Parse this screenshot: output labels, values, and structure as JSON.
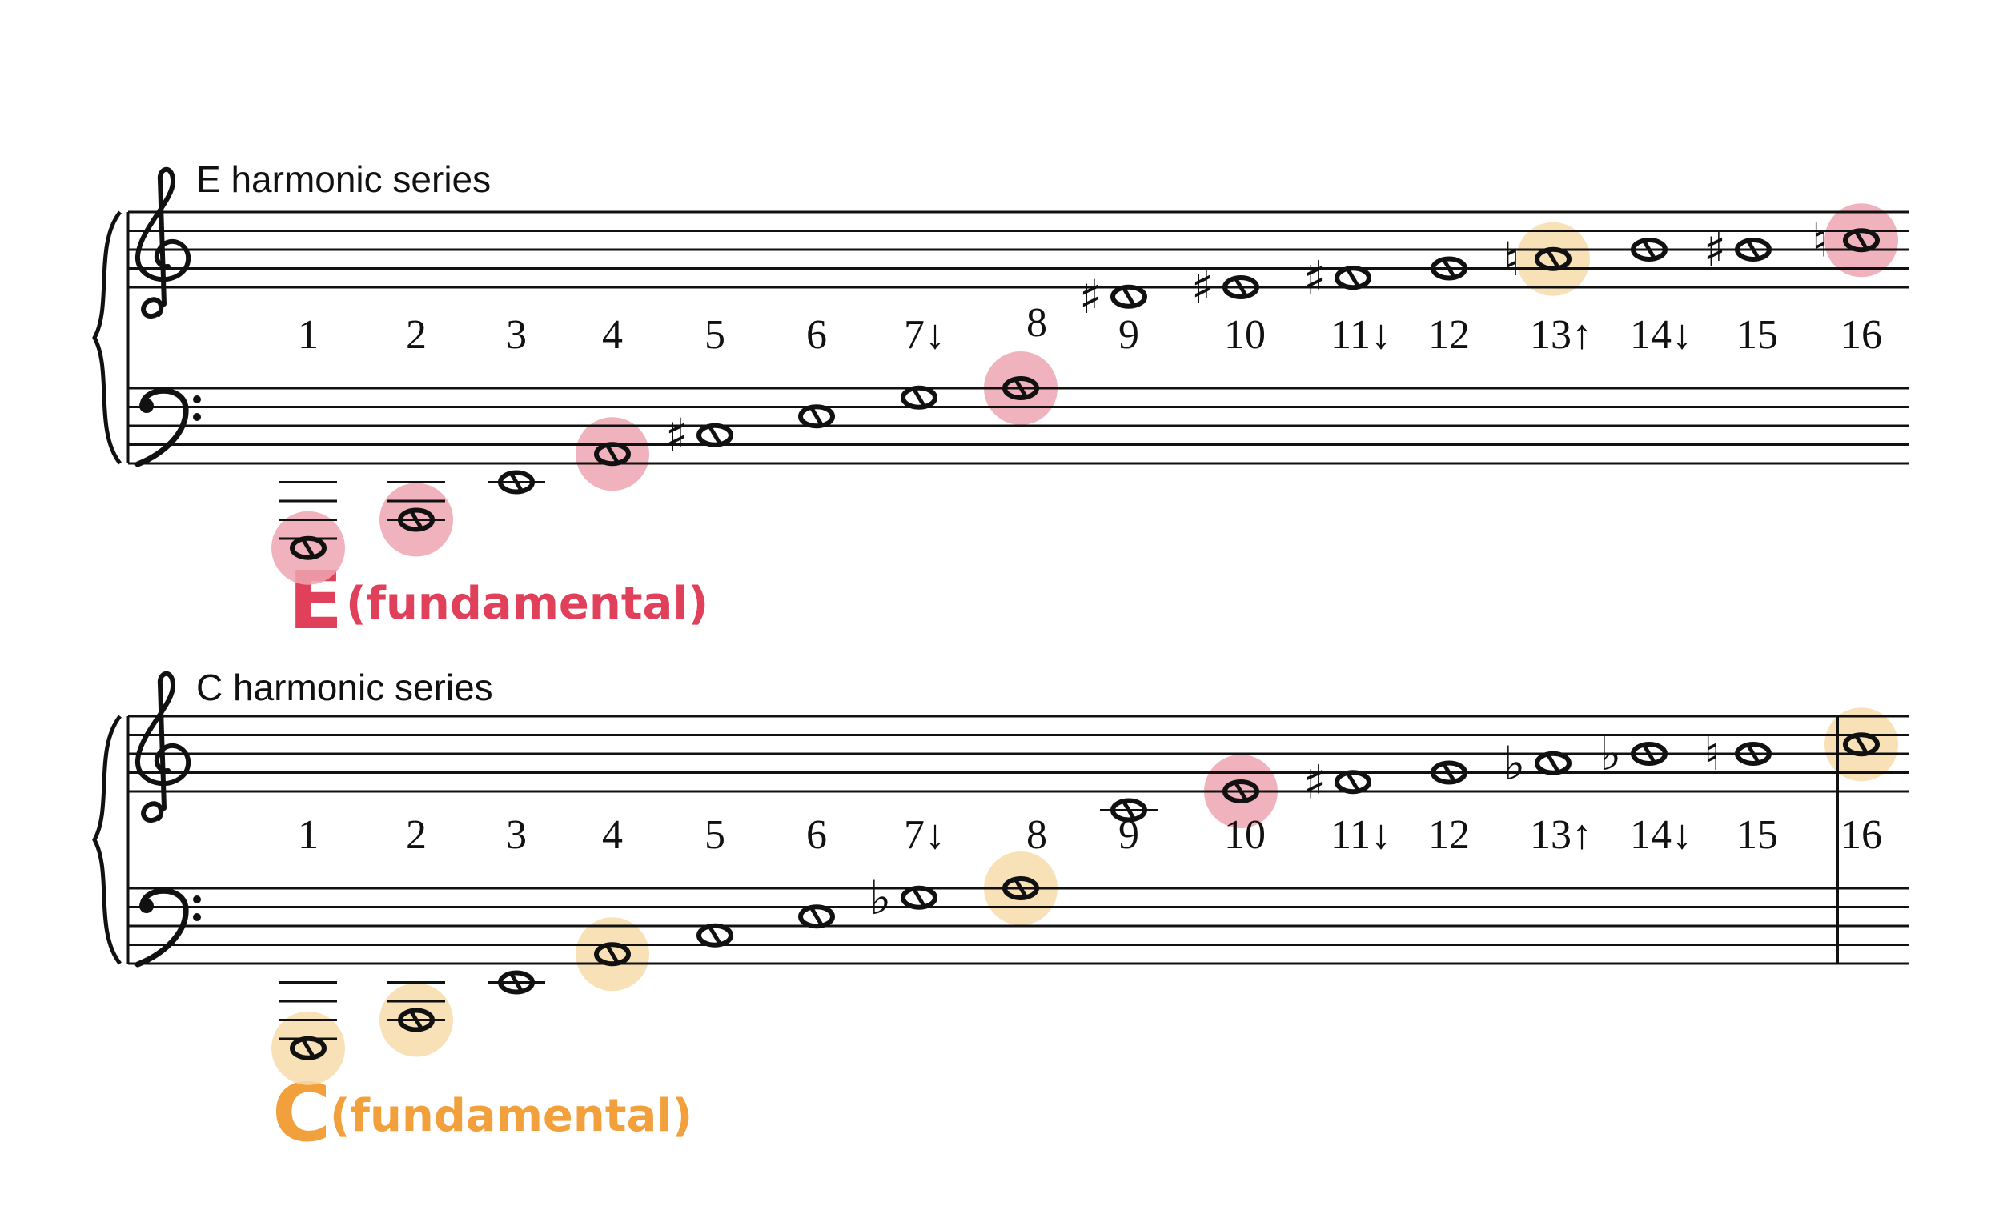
{
  "colors": {
    "red": "#e0405a",
    "orange": "#f2a03c",
    "red_highlight": "#eda5b0",
    "orange_highlight": "#f8dcaa"
  },
  "systems": [
    {
      "id": "e",
      "title": "E harmonic series",
      "fundamental_letter": "E",
      "fundamental_label": "(fundamental)",
      "fundamental_color": "red",
      "numbers": [
        "1",
        "2",
        "3",
        "4",
        "5",
        "6",
        "7↓",
        "8",
        "9",
        "10",
        "11↓",
        "12",
        "13↑",
        "14↓",
        "15",
        "16"
      ],
      "notes": [
        {
          "n": "1",
          "staff": "bass",
          "step": -9,
          "acc": "",
          "hl": "red"
        },
        {
          "n": "2",
          "staff": "bass",
          "step": -6,
          "acc": "",
          "hl": "red"
        },
        {
          "n": "3",
          "staff": "bass",
          "step": -2,
          "acc": "",
          "hl": ""
        },
        {
          "n": "4",
          "staff": "bass",
          "step": 1,
          "acc": "",
          "hl": "red"
        },
        {
          "n": "5",
          "staff": "bass",
          "step": 3,
          "acc": "sharp",
          "hl": ""
        },
        {
          "n": "6",
          "staff": "bass",
          "step": 5,
          "acc": "",
          "hl": ""
        },
        {
          "n": "7",
          "staff": "bass",
          "step": 7,
          "acc": "",
          "hl": ""
        },
        {
          "n": "8",
          "staff": "bass",
          "step": 8,
          "acc": "",
          "hl": "red"
        },
        {
          "n": "9",
          "staff": "treble",
          "step": -1,
          "acc": "sharp",
          "hl": ""
        },
        {
          "n": "10",
          "staff": "treble",
          "step": 0,
          "acc": "sharp",
          "hl": ""
        },
        {
          "n": "11",
          "staff": "treble",
          "step": 1,
          "acc": "sharp",
          "hl": ""
        },
        {
          "n": "12",
          "staff": "treble",
          "step": 2,
          "acc": "",
          "hl": ""
        },
        {
          "n": "13",
          "staff": "treble",
          "step": 3,
          "acc": "natural",
          "hl": "orange"
        },
        {
          "n": "14",
          "staff": "treble",
          "step": 4,
          "acc": "",
          "hl": ""
        },
        {
          "n": "15",
          "staff": "treble",
          "step": 4,
          "acc": "sharp",
          "hl": ""
        },
        {
          "n": "16",
          "staff": "treble",
          "step": 5,
          "acc": "natural",
          "hl": "red"
        }
      ],
      "final_barline": false
    },
    {
      "id": "c",
      "title": "C harmonic series",
      "fundamental_letter": "C",
      "fundamental_label": "(fundamental)",
      "fundamental_color": "orange",
      "numbers": [
        "1",
        "2",
        "3",
        "4",
        "5",
        "6",
        "7↓",
        "8",
        "9",
        "10",
        "11↓",
        "12",
        "13↑",
        "14↓",
        "15",
        "16"
      ],
      "notes": [
        {
          "n": "1",
          "staff": "bass",
          "step": -9,
          "acc": "",
          "hl": "orange"
        },
        {
          "n": "2",
          "staff": "bass",
          "step": -6,
          "acc": "",
          "hl": "orange"
        },
        {
          "n": "3",
          "staff": "bass",
          "step": -2,
          "acc": "",
          "hl": ""
        },
        {
          "n": "4",
          "staff": "bass",
          "step": 1,
          "acc": "",
          "hl": "orange"
        },
        {
          "n": "5",
          "staff": "bass",
          "step": 3,
          "acc": "",
          "hl": ""
        },
        {
          "n": "6",
          "staff": "bass",
          "step": 5,
          "acc": "",
          "hl": ""
        },
        {
          "n": "7",
          "staff": "bass",
          "step": 7,
          "acc": "flat",
          "hl": ""
        },
        {
          "n": "8",
          "staff": "bass",
          "step": 8,
          "acc": "",
          "hl": "orange"
        },
        {
          "n": "9",
          "staff": "treble",
          "step": -2,
          "acc": "",
          "hl": ""
        },
        {
          "n": "10",
          "staff": "treble",
          "step": 0,
          "acc": "",
          "hl": "red"
        },
        {
          "n": "11",
          "staff": "treble",
          "step": 1,
          "acc": "sharp",
          "hl": ""
        },
        {
          "n": "12",
          "staff": "treble",
          "step": 2,
          "acc": "",
          "hl": ""
        },
        {
          "n": "13",
          "staff": "treble",
          "step": 3,
          "acc": "flat",
          "hl": ""
        },
        {
          "n": "14",
          "staff": "treble",
          "step": 4,
          "acc": "flat",
          "hl": ""
        },
        {
          "n": "15",
          "staff": "treble",
          "step": 4,
          "acc": "natural",
          "hl": ""
        },
        {
          "n": "16",
          "staff": "treble",
          "step": 5,
          "acc": "",
          "hl": "orange"
        }
      ],
      "final_barline": true
    }
  ]
}
